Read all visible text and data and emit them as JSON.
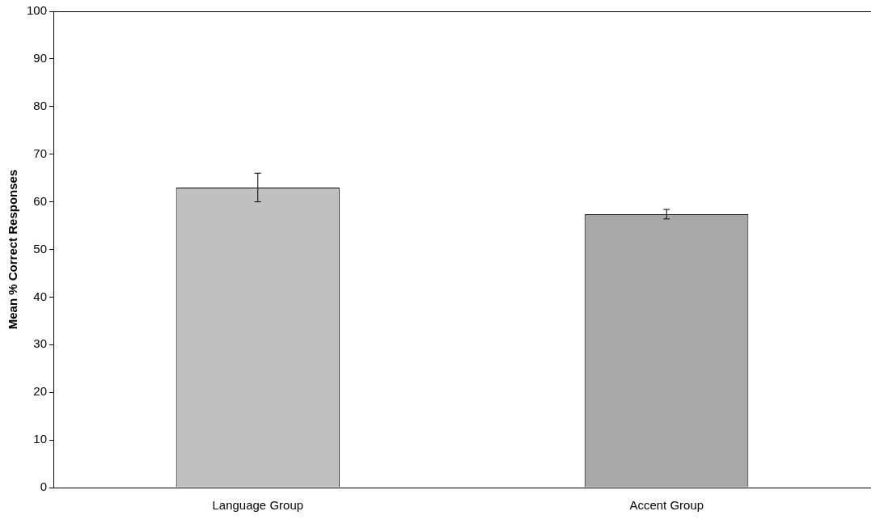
{
  "chart_data": {
    "type": "bar",
    "ylabel": "Mean % Correct Responses",
    "categories": [
      "Language Group",
      "Accent Group"
    ],
    "values": [
      63,
      57.4
    ],
    "errors": [
      3,
      1
    ],
    "colors": [
      "#c0c0c0",
      "#a8a8a8"
    ],
    "ylim": [
      0,
      100
    ],
    "yticks": [
      0,
      10,
      20,
      30,
      40,
      50,
      60,
      70,
      80,
      90,
      100
    ],
    "grid": false,
    "legend": false
  }
}
